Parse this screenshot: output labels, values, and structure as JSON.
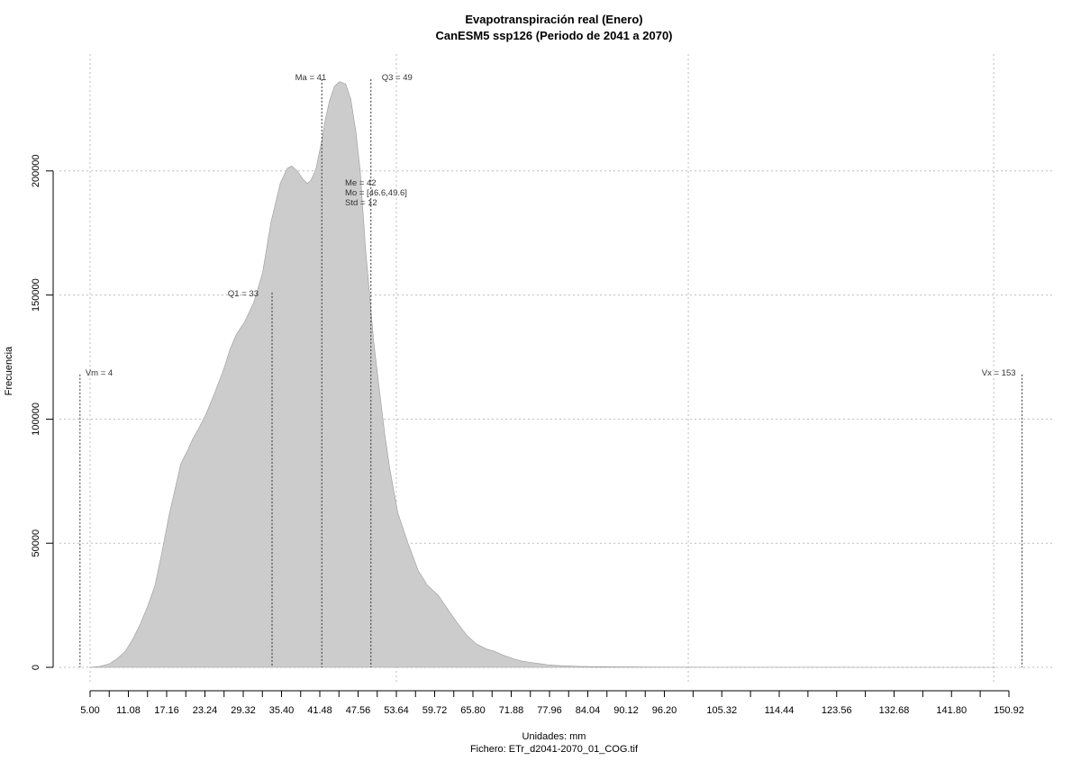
{
  "chart_data": {
    "type": "area",
    "title": "Evapotranspiración real (Enero)",
    "subtitle": "CanESM5 ssp126 (Periodo de 2041 a 2070)",
    "xlabel": "Unidades: mm",
    "ylabel": "Frecuencia",
    "caption": "Fichero: ETr_d2041-2070_01_COG.tif",
    "fill_color": "#cccccc",
    "grid": true,
    "xlim": [
      5.0,
      150.92
    ],
    "ylim": [
      0,
      237000
    ],
    "x_ticks": [
      5.0,
      11.08,
      17.16,
      23.24,
      29.32,
      35.4,
      41.48,
      47.56,
      53.64,
      59.72,
      65.8,
      71.88,
      77.96,
      84.04,
      90.12,
      96.2,
      105.32,
      114.44,
      123.56,
      132.68,
      141.8,
      150.92
    ],
    "x_tick_labels": [
      "5.00",
      "11.08",
      "17.16",
      "23.24",
      "29.32",
      "35.40",
      "41.48",
      "47.56",
      "53.64",
      "59.72",
      "65.80",
      "71.88",
      "77.96",
      "84.04",
      "90.12",
      "96.20",
      "105.32",
      "114.44",
      "123.56",
      "132.68",
      "141.80",
      "150.92"
    ],
    "x_minor_ticks": [
      8.04,
      14.12,
      20.2,
      26.28,
      32.36,
      38.44,
      44.52,
      50.6,
      56.68,
      62.76,
      68.84,
      74.92,
      81.0,
      87.08,
      93.16,
      100.76,
      109.88,
      119.0,
      128.12,
      137.24,
      146.36
    ],
    "y_ticks": [
      0,
      50000,
      100000,
      150000,
      200000
    ],
    "y_tick_labels": [
      "0",
      "50000",
      "100000",
      "150000",
      "200000"
    ],
    "x_grid": [
      5.0,
      53.64,
      100.0,
      148.5
    ],
    "y_grid": [
      0,
      50000,
      100000,
      150000,
      200000
    ],
    "x": [
      5.0,
      6.6,
      8.1,
      9.3,
      10.6,
      11.7,
      12.9,
      14.2,
      15.3,
      16.3,
      17.6,
      18.6,
      19.4,
      20.6,
      21.3,
      22.2,
      23.4,
      24.7,
      26.2,
      27.2,
      28.2,
      29.5,
      31.0,
      32.4,
      33.7,
      35.2,
      36.3,
      37.0,
      37.9,
      38.7,
      39.5,
      40.0,
      40.4,
      40.9,
      41.2,
      41.8,
      42.3,
      43.0,
      43.8,
      44.6,
      45.6,
      46.4,
      47.2,
      47.9,
      48.3,
      48.7,
      49.4,
      50.0,
      50.8,
      51.8,
      52.6,
      53.9,
      55.5,
      57.1,
      58.6,
      60.3,
      61.9,
      63.3,
      64.8,
      66.3,
      67.8,
      69.2,
      70.5,
      72.2,
      73.6,
      75.0,
      76.4,
      77.7,
      78.9,
      80.1,
      81.3,
      82.6,
      84.6,
      87.6,
      90.9,
      93.5,
      98.0,
      103.0,
      112.0,
      122.0,
      130.0,
      138.0,
      146.0,
      148.8
    ],
    "y": [
      0,
      400,
      1500,
      3500,
      6500,
      11000,
      17000,
      25000,
      33000,
      45000,
      62000,
      73000,
      82000,
      88000,
      92000,
      96000,
      102000,
      110000,
      120000,
      128000,
      134000,
      139000,
      147000,
      159000,
      179000,
      195000,
      201000,
      202000,
      200000,
      197000,
      195000,
      196000,
      198000,
      201000,
      205000,
      212000,
      220000,
      228000,
      234000,
      236000,
      235000,
      229000,
      216000,
      200000,
      185000,
      170000,
      150000,
      132000,
      115000,
      94000,
      80000,
      62000,
      50000,
      39000,
      33000,
      29000,
      23000,
      18000,
      13000,
      9500,
      7500,
      6500,
      5000,
      3500,
      2500,
      2000,
      1500,
      1000,
      800,
      600,
      500,
      400,
      300,
      200,
      150,
      100,
      70,
      50,
      30,
      20,
      10,
      5,
      2,
      0
    ],
    "markers": [
      {
        "label": "Vm = 4",
        "x": 3.4,
        "top": 118000
      },
      {
        "label": "Q1 = 33",
        "x": 33.9,
        "top": 151000
      },
      {
        "label": "Ma = 41",
        "x": 41.8,
        "top": 237000
      },
      {
        "label": "Q3 = 49",
        "x": 49.6,
        "top": 237000
      },
      {
        "label": "Vx = 153",
        "x": 153.0,
        "top": 118000
      }
    ],
    "stats": [
      "Me = 42",
      "Mo = [46.6,49.6]",
      "Std = 12"
    ]
  }
}
